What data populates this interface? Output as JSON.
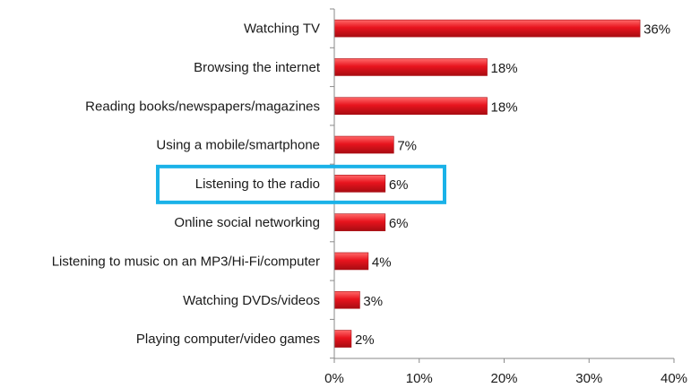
{
  "chart_data": {
    "type": "bar",
    "orientation": "horizontal",
    "categories": [
      "Watching TV",
      "Browsing the internet",
      "Reading books/newspapers/magazines",
      "Using a mobile/smartphone",
      "Listening to the radio",
      "Online social networking",
      "Listening to music on an MP3/Hi-Fi/computer",
      "Watching DVDs/videos",
      "Playing computer/video games"
    ],
    "values": [
      36,
      18,
      18,
      7,
      6,
      6,
      4,
      3,
      2
    ],
    "value_labels": [
      "36%",
      "18%",
      "18%",
      "7%",
      "6%",
      "6%",
      "4%",
      "3%",
      "2%"
    ],
    "xlim": [
      0,
      40
    ],
    "x_ticks": [
      0,
      10,
      20,
      30,
      40
    ],
    "x_tick_labels": [
      "0%",
      "10%",
      "20%",
      "30%",
      "40%"
    ],
    "title": "",
    "xlabel": "",
    "ylabel": "",
    "grid": false,
    "highlight_category": "Listening to the radio",
    "colors": {
      "bar": "#e8141e",
      "bar_dark": "#a80c12",
      "bar_light": "#ff6a6a",
      "highlight_box": "#1ab2e8",
      "axis": "#8a8a8a"
    }
  }
}
